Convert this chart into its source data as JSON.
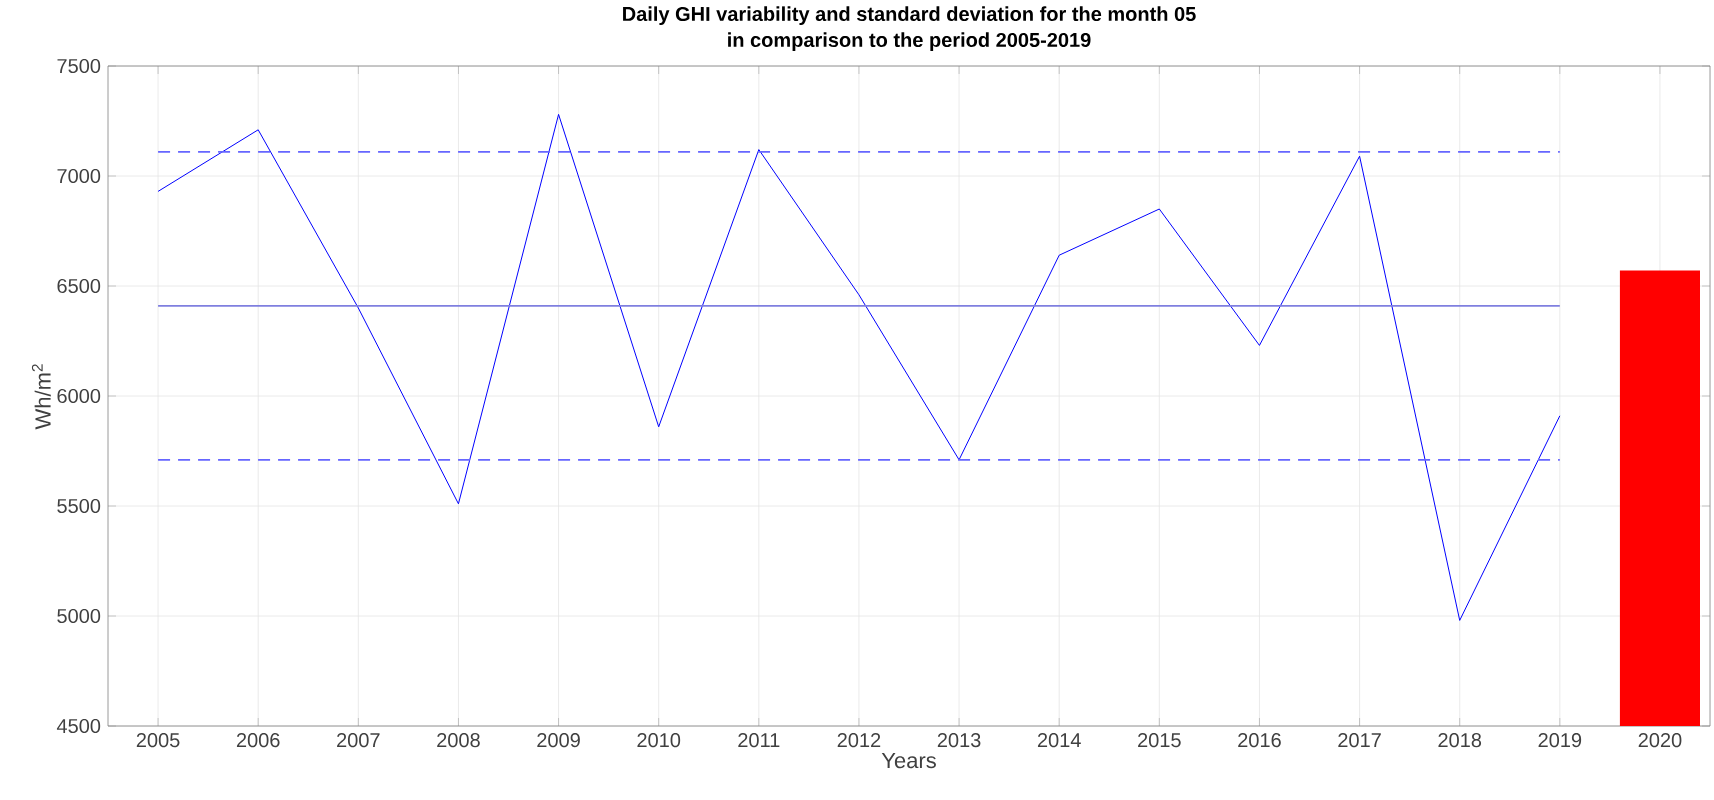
{
  "chart_data": {
    "type": "line",
    "title": "Daily GHI variability and standard deviation for the month 05",
    "subtitle": "in comparison to the period 2005-2019",
    "xlabel": "Years",
    "ylabel": "Wh/m$^{2}$",
    "categories": [
      "2005",
      "2006",
      "2007",
      "2008",
      "2009",
      "2010",
      "2011",
      "2012",
      "2013",
      "2014",
      "2015",
      "2016",
      "2017",
      "2018",
      "2019",
      "2020"
    ],
    "series": [
      {
        "color": "#0000ff",
        "values": [
          6930,
          7210,
          6400,
          5510,
          7280,
          5860,
          7120,
          6460,
          5710,
          6640,
          6850,
          6230,
          7090,
          4980,
          5910,
          null
        ]
      },
      {
        "type": "bar",
        "color": "#ff0000",
        "values": [
          null,
          null,
          null,
          null,
          null,
          null,
          null,
          null,
          null,
          null,
          null,
          null,
          null,
          null,
          null,
          6570
        ]
      }
    ],
    "ref_lines": [
      {
        "axis": "y",
        "value": 6410,
        "color": "#7f7fdf",
        "line_style": "solid"
      },
      {
        "axis": "y",
        "value": 7110,
        "color": "#6666ff",
        "line_style": "dashed"
      },
      {
        "axis": "y",
        "value": 5710,
        "color": "#6666ff",
        "line_style": "dashed"
      }
    ],
    "ylim": [
      4500,
      7500
    ],
    "yticks": [
      4500,
      5000,
      5500,
      6000,
      6500,
      7000,
      7500
    ],
    "grid": true
  }
}
